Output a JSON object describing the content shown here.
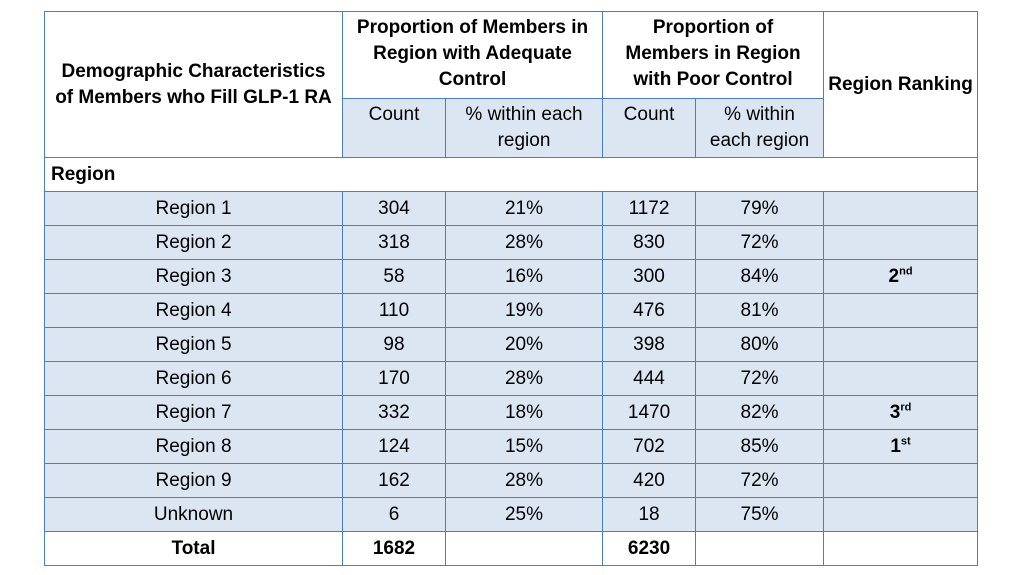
{
  "headers": {
    "demographic": "Demographic Characteristics of Members who Fill GLP-1 RA",
    "adequate_group": "Proportion of Members in Region with Adequate Control",
    "poor_group": "Proportion of Members in Region with Poor Control",
    "ranking": "Region Ranking",
    "count": "Count",
    "pct": "% within each region"
  },
  "section_label": "Region",
  "rows": [
    {
      "name": "Region 1",
      "adequate_count": "304",
      "adequate_pct": "21%",
      "poor_count": "1172",
      "poor_pct": "79%",
      "rank_num": "",
      "rank_suffix": ""
    },
    {
      "name": "Region 2",
      "adequate_count": "318",
      "adequate_pct": "28%",
      "poor_count": "830",
      "poor_pct": "72%",
      "rank_num": "",
      "rank_suffix": ""
    },
    {
      "name": "Region 3",
      "adequate_count": "58",
      "adequate_pct": "16%",
      "poor_count": "300",
      "poor_pct": "84%",
      "rank_num": "2",
      "rank_suffix": "nd"
    },
    {
      "name": "Region 4",
      "adequate_count": "110",
      "adequate_pct": "19%",
      "poor_count": "476",
      "poor_pct": "81%",
      "rank_num": "",
      "rank_suffix": ""
    },
    {
      "name": "Region 5",
      "adequate_count": "98",
      "adequate_pct": "20%",
      "poor_count": "398",
      "poor_pct": "80%",
      "rank_num": "",
      "rank_suffix": ""
    },
    {
      "name": "Region 6",
      "adequate_count": "170",
      "adequate_pct": "28%",
      "poor_count": "444",
      "poor_pct": "72%",
      "rank_num": "",
      "rank_suffix": ""
    },
    {
      "name": "Region 7",
      "adequate_count": "332",
      "adequate_pct": "18%",
      "poor_count": "1470",
      "poor_pct": "82%",
      "rank_num": "3",
      "rank_suffix": "rd"
    },
    {
      "name": "Region 8",
      "adequate_count": "124",
      "adequate_pct": "15%",
      "poor_count": "702",
      "poor_pct": "85%",
      "rank_num": "1",
      "rank_suffix": "st"
    },
    {
      "name": "Region 9",
      "adequate_count": "162",
      "adequate_pct": "28%",
      "poor_count": "420",
      "poor_pct": "72%",
      "rank_num": "",
      "rank_suffix": ""
    },
    {
      "name": "Unknown",
      "adequate_count": "6",
      "adequate_pct": "25%",
      "poor_count": "18",
      "poor_pct": "75%",
      "rank_num": "",
      "rank_suffix": ""
    }
  ],
  "total": {
    "label": "Total",
    "adequate_count": "1682",
    "poor_count": "6230"
  },
  "colors": {
    "border": "#4a7ec7",
    "row_fill": "#dce6f2",
    "header_fill": "#ffffff"
  }
}
